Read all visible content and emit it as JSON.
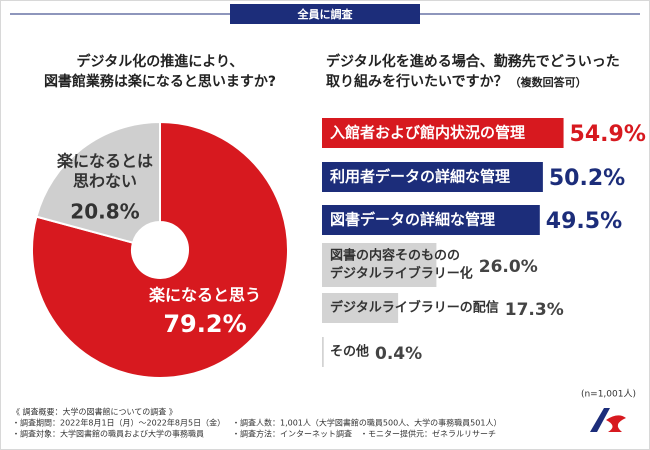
{
  "header": {
    "tag": "全員に調査"
  },
  "chart_data": [
    {
      "type": "pie",
      "title": [
        "デジタル化の推進により、",
        "図書館業務は楽になると思いますか?"
      ],
      "categories": [
        "楽になると思う",
        [
          "楽になるとは",
          "思わない"
        ]
      ],
      "values": [
        79.2,
        20.8
      ],
      "value_labels": [
        "79.2%",
        "20.8%"
      ],
      "colors": [
        "#d7191f",
        "#cfcfcf"
      ]
    },
    {
      "type": "barh",
      "title": [
        "デジタル化を進める場合、勤務先でどういった",
        "取り組みを行いたいですか？"
      ],
      "subtitle": "（複数回答可）",
      "categories": [
        "入館者および館内状況の管理",
        "利用者データの詳細な管理",
        "図書データの詳細な管理",
        [
          "図書の内容そのものの",
          "デジタルライブラリー化"
        ],
        "デジタルライブラリーの配信",
        "その他"
      ],
      "values": [
        54.9,
        50.2,
        49.5,
        26.0,
        17.3,
        0.4
      ],
      "value_labels": [
        "54.9%",
        "50.2%",
        "49.5%",
        "26.0%",
        "17.3%",
        "0.4%"
      ],
      "colors": [
        "#d7191f",
        "#1c2d7a",
        "#1c2d7a",
        "#d3d3d3",
        "#d3d3d3",
        "#d3d3d3"
      ],
      "note": "(n=1,001人)"
    }
  ],
  "footer": {
    "lines": [
      "《 調査概要：大学の図書館についての調査 》",
      "・調査期間：2022年8月1日（月）～2022年8月5日（金）",
      "・調査対象：大学図書館の職員および大学の事務職員",
      "・調査人数：1,001人（大学図書館の職員500人、大学の事務職員501人）",
      "・調査方法：インターネット調査",
      "・モニター提供元：ゼネラルリサーチ"
    ]
  }
}
